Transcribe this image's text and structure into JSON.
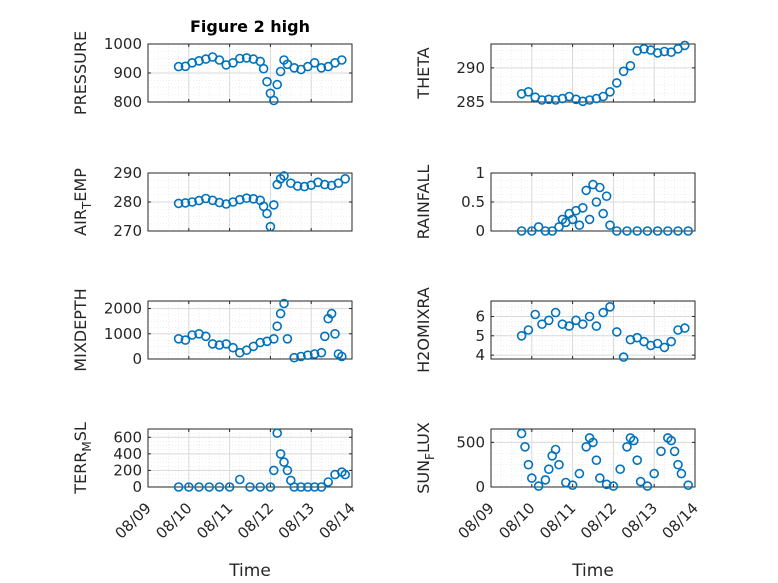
{
  "chart_data": [
    {
      "type": "scatter",
      "title": "Figure 2 high",
      "ylabel": "PRESSURE",
      "ylim": [
        800,
        1000
      ],
      "yticks": [
        "800",
        "900",
        "1000"
      ],
      "xlim": [
        "08/09",
        "08/14"
      ],
      "grid": true,
      "marker_color": "#0072BD",
      "x": [
        "08/09 18:00",
        "08/09 22:00",
        "08/10 02:00",
        "08/10 06:00",
        "08/10 10:00",
        "08/10 14:00",
        "08/10 18:00",
        "08/10 22:00",
        "08/11 02:00",
        "08/11 06:00",
        "08/11 10:00",
        "08/11 14:00",
        "08/11 18:00",
        "08/11 20:00",
        "08/11 22:00",
        "08/12 00:00",
        "08/12 02:00",
        "08/12 04:00",
        "08/12 06:00",
        "08/12 08:00",
        "08/12 10:00",
        "08/12 14:00",
        "08/12 18:00",
        "08/12 22:00",
        "08/13 02:00",
        "08/13 06:00",
        "08/13 10:00",
        "08/13 14:00",
        "08/13 18:00"
      ],
      "y": [
        922,
        923,
        935,
        942,
        948,
        955,
        945,
        928,
        935,
        950,
        952,
        948,
        940,
        915,
        870,
        830,
        805,
        860,
        905,
        945,
        930,
        918,
        912,
        922,
        935,
        918,
        922,
        935,
        945
      ]
    },
    {
      "type": "scatter",
      "ylabel": "THETA",
      "ylim": [
        285,
        293.5
      ],
      "yticks": [
        "285",
        "290"
      ],
      "xlim": [
        "08/09",
        "08/14"
      ],
      "grid": true,
      "marker_color": "#0072BD",
      "x": [
        "08/09 18:00",
        "08/09 22:00",
        "08/10 02:00",
        "08/10 06:00",
        "08/10 10:00",
        "08/10 14:00",
        "08/10 18:00",
        "08/10 22:00",
        "08/11 02:00",
        "08/11 06:00",
        "08/11 10:00",
        "08/11 14:00",
        "08/11 18:00",
        "08/11 22:00",
        "08/12 02:00",
        "08/12 06:00",
        "08/12 10:00",
        "08/12 14:00",
        "08/12 18:00",
        "08/12 22:00",
        "08/13 02:00",
        "08/13 06:00",
        "08/13 10:00",
        "08/13 14:00",
        "08/13 18:00"
      ],
      "y": [
        286.2,
        286.5,
        285.7,
        285.3,
        285.4,
        285.3,
        285.5,
        285.8,
        285.4,
        285.1,
        285.3,
        285.5,
        285.8,
        286.5,
        287.8,
        289.5,
        290.3,
        292.5,
        292.8,
        292.6,
        292.2,
        292.4,
        292.3,
        292.8,
        293.3
      ]
    },
    {
      "type": "scatter",
      "ylabel": "AIR_TEMP",
      "ylim": [
        270,
        290
      ],
      "yticks": [
        "270",
        "280",
        "290"
      ],
      "xlim": [
        "08/09",
        "08/14"
      ],
      "grid": true,
      "marker_color": "#0072BD",
      "x": [
        "08/09 18:00",
        "08/09 22:00",
        "08/10 02:00",
        "08/10 06:00",
        "08/10 10:00",
        "08/10 14:00",
        "08/10 18:00",
        "08/10 22:00",
        "08/11 02:00",
        "08/11 06:00",
        "08/11 10:00",
        "08/11 14:00",
        "08/11 18:00",
        "08/11 20:00",
        "08/11 22:00",
        "08/12 00:00",
        "08/12 02:00",
        "08/12 04:00",
        "08/12 06:00",
        "08/12 08:00",
        "08/12 12:00",
        "08/12 16:00",
        "08/12 20:00",
        "08/13 00:00",
        "08/13 04:00",
        "08/13 08:00",
        "08/13 12:00",
        "08/13 16:00",
        "08/13 20:00"
      ],
      "y": [
        279.5,
        279.7,
        280,
        280.5,
        281.2,
        280.6,
        279.8,
        279.3,
        280,
        280.8,
        281.3,
        281.1,
        280.6,
        278.5,
        276,
        271.5,
        279,
        286,
        288,
        289,
        286.5,
        285.5,
        285.3,
        285.8,
        286.8,
        286,
        285.7,
        286.5,
        288
      ]
    },
    {
      "type": "scatter",
      "ylabel": "RAINFALL",
      "ylim": [
        0,
        1
      ],
      "yticks": [
        "0",
        "0.5",
        "1"
      ],
      "xlim": [
        "08/09",
        "08/14"
      ],
      "grid": true,
      "marker_color": "#0072BD",
      "x": [
        "08/09 18:00",
        "08/10 00:00",
        "08/10 04:00",
        "08/10 08:00",
        "08/10 12:00",
        "08/10 16:00",
        "08/10 18:00",
        "08/10 20:00",
        "08/10 22:00",
        "08/11 00:00",
        "08/11 02:00",
        "08/11 04:00",
        "08/11 06:00",
        "08/11 08:00",
        "08/11 10:00",
        "08/11 12:00",
        "08/11 14:00",
        "08/11 16:00",
        "08/11 18:00",
        "08/11 20:00",
        "08/11 22:00",
        "08/12 02:00",
        "08/12 08:00",
        "08/12 14:00",
        "08/12 20:00",
        "08/13 02:00",
        "08/13 08:00",
        "08/13 14:00",
        "08/13 20:00"
      ],
      "y": [
        0,
        0,
        0.07,
        0,
        0,
        0.07,
        0.2,
        0.15,
        0.3,
        0.2,
        0.35,
        0.1,
        0.4,
        0.7,
        0.2,
        0.8,
        0.5,
        0.75,
        0.3,
        0.6,
        0.1,
        0,
        0,
        0,
        0,
        0,
        0,
        0,
        0
      ]
    },
    {
      "type": "scatter",
      "ylabel": "MIXDEPTH",
      "ylim": [
        0,
        2300
      ],
      "yticks": [
        "0",
        "1000",
        "2000"
      ],
      "xlim": [
        "08/09",
        "08/14"
      ],
      "grid": true,
      "marker_color": "#0072BD",
      "x": [
        "08/09 18:00",
        "08/09 22:00",
        "08/10 02:00",
        "08/10 06:00",
        "08/10 10:00",
        "08/10 14:00",
        "08/10 18:00",
        "08/10 22:00",
        "08/11 02:00",
        "08/11 06:00",
        "08/11 10:00",
        "08/11 14:00",
        "08/11 18:00",
        "08/11 22:00",
        "08/12 02:00",
        "08/12 04:00",
        "08/12 06:00",
        "08/12 08:00",
        "08/12 10:00",
        "08/12 14:00",
        "08/12 18:00",
        "08/12 22:00",
        "08/13 02:00",
        "08/13 06:00",
        "08/13 08:00",
        "08/13 10:00",
        "08/13 12:00",
        "08/13 14:00",
        "08/13 16:00",
        "08/13 18:00"
      ],
      "y": [
        800,
        750,
        950,
        1000,
        900,
        600,
        550,
        600,
        450,
        250,
        350,
        500,
        650,
        700,
        800,
        1300,
        1800,
        2200,
        800,
        50,
        100,
        150,
        200,
        250,
        900,
        1600,
        1800,
        1000,
        200,
        100
      ]
    },
    {
      "type": "scatter",
      "ylabel": "H2OMIXRA",
      "ylim": [
        3.8,
        6.8
      ],
      "yticks": [
        "4",
        "5",
        "6"
      ],
      "xlim": [
        "08/09",
        "08/14"
      ],
      "grid": true,
      "marker_color": "#0072BD",
      "x": [
        "08/09 18:00",
        "08/09 22:00",
        "08/10 02:00",
        "08/10 06:00",
        "08/10 10:00",
        "08/10 14:00",
        "08/10 18:00",
        "08/10 22:00",
        "08/11 02:00",
        "08/11 06:00",
        "08/11 10:00",
        "08/11 14:00",
        "08/11 18:00",
        "08/11 22:00",
        "08/12 02:00",
        "08/12 06:00",
        "08/12 10:00",
        "08/12 14:00",
        "08/12 18:00",
        "08/12 22:00",
        "08/13 02:00",
        "08/13 06:00",
        "08/13 10:00",
        "08/13 14:00",
        "08/13 18:00"
      ],
      "y": [
        5.0,
        5.3,
        6.1,
        5.6,
        5.8,
        6.2,
        5.6,
        5.5,
        5.8,
        5.6,
        6.0,
        5.5,
        6.2,
        6.5,
        5.2,
        3.9,
        4.8,
        4.9,
        4.7,
        4.5,
        4.6,
        4.4,
        4.7,
        5.3,
        5.4
      ]
    },
    {
      "type": "scatter",
      "ylabel": "TERR_MSL",
      "ylim": [
        0,
        700
      ],
      "yticks": [
        "0",
        "200",
        "400",
        "600"
      ],
      "xlim": [
        "08/09",
        "08/14"
      ],
      "grid": true,
      "marker_color": "#0072BD",
      "x": [
        "08/09 18:00",
        "08/10 00:00",
        "08/10 06:00",
        "08/10 12:00",
        "08/10 18:00",
        "08/11 00:00",
        "08/11 06:00",
        "08/11 12:00",
        "08/11 18:00",
        "08/12 00:00",
        "08/12 02:00",
        "08/12 04:00",
        "08/12 06:00",
        "08/12 08:00",
        "08/12 10:00",
        "08/12 12:00",
        "08/12 14:00",
        "08/12 18:00",
        "08/12 22:00",
        "08/13 02:00",
        "08/13 06:00",
        "08/13 10:00",
        "08/13 14:00",
        "08/13 18:00",
        "08/13 20:00"
      ],
      "y": [
        0,
        0,
        0,
        0,
        0,
        0,
        90,
        0,
        0,
        0,
        200,
        650,
        400,
        300,
        200,
        80,
        0,
        0,
        0,
        0,
        0,
        60,
        150,
        180,
        150
      ]
    },
    {
      "type": "scatter",
      "ylabel": "SUN_FLUX",
      "ylim": [
        0,
        650
      ],
      "yticks": [
        "0",
        "500"
      ],
      "xlim": [
        "08/09",
        "08/14"
      ],
      "grid": true,
      "marker_color": "#0072BD",
      "x": [
        "08/09 18:00",
        "08/09 20:00",
        "08/09 22:00",
        "08/10 00:00",
        "08/10 04:00",
        "08/10 08:00",
        "08/10 10:00",
        "08/10 12:00",
        "08/10 14:00",
        "08/10 16:00",
        "08/10 20:00",
        "08/11 00:00",
        "08/11 04:00",
        "08/11 08:00",
        "08/11 10:00",
        "08/11 12:00",
        "08/11 14:00",
        "08/11 16:00",
        "08/11 20:00",
        "08/12 00:00",
        "08/12 04:00",
        "08/12 08:00",
        "08/12 10:00",
        "08/12 12:00",
        "08/12 14:00",
        "08/12 16:00",
        "08/12 20:00",
        "08/13 00:00",
        "08/13 04:00",
        "08/13 08:00",
        "08/13 10:00",
        "08/13 12:00",
        "08/13 14:00",
        "08/13 16:00",
        "08/13 20:00"
      ],
      "y": [
        600,
        450,
        250,
        100,
        10,
        80,
        200,
        350,
        420,
        250,
        50,
        20,
        150,
        450,
        550,
        500,
        300,
        100,
        30,
        10,
        200,
        450,
        550,
        520,
        300,
        60,
        10,
        150,
        400,
        550,
        520,
        400,
        250,
        150,
        20
      ]
    }
  ],
  "xlabel": "Time",
  "xtick_labels": [
    "08/09",
    "08/10",
    "08/11",
    "08/12",
    "08/13",
    "08/14"
  ]
}
